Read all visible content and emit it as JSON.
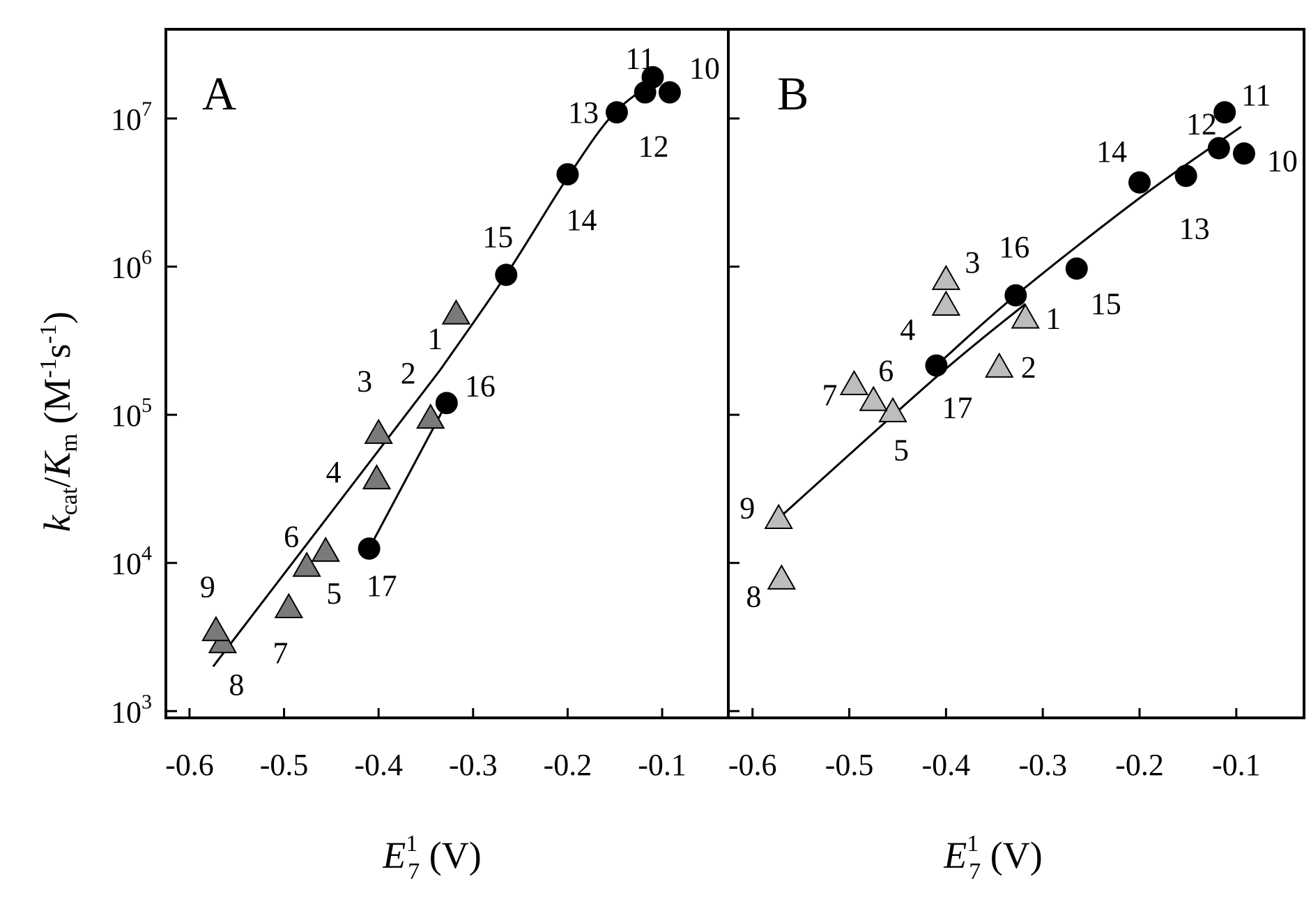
{
  "chart_data": {
    "type": "scatter",
    "y_scale": "log",
    "ylim": [
      900,
      40000000
    ],
    "y_tick_values": [
      1000,
      10000,
      100000,
      1000000,
      10000000
    ],
    "y_tick_labels": [
      {
        "base": "10",
        "exp": "3"
      },
      {
        "base": "10",
        "exp": "4"
      },
      {
        "base": "10",
        "exp": "5"
      },
      {
        "base": "10",
        "exp": "6"
      },
      {
        "base": "10",
        "exp": "7"
      }
    ],
    "x_ticks": [
      -0.6,
      -0.5,
      -0.4,
      -0.3,
      -0.2,
      -0.1
    ],
    "x_tick_labels": [
      "-0.6",
      "-0.5",
      "-0.4",
      "-0.3",
      "-0.2",
      "-0.1"
    ],
    "y_title": {
      "k": "k",
      "cat": "cat",
      "slash": "/",
      "K": "K",
      "m": "m",
      "unit_open": " (M",
      "exp1": "-1",
      "s": "s",
      "exp2": "-1",
      "unit_close": ")"
    },
    "x_title": {
      "E": "E",
      "sup": "1",
      "sub": "7",
      "unit": " (V)"
    },
    "legend": "none",
    "grid": false,
    "panels": [
      {
        "letter": "A",
        "xlim": [
          -0.625,
          -0.03
        ],
        "triangle_color": "#7a7a7a",
        "circle_color": "#000000",
        "points": [
          {
            "label": "1",
            "marker": "triangle",
            "x": -0.318,
            "y": 480000
          },
          {
            "label": "2",
            "marker": "triangle",
            "x": -0.345,
            "y": 95000
          },
          {
            "label": "3",
            "marker": "triangle",
            "x": -0.4,
            "y": 75000
          },
          {
            "label": "4",
            "marker": "triangle",
            "x": -0.402,
            "y": 37000
          },
          {
            "label": "5",
            "marker": "triangle",
            "x": -0.456,
            "y": 12000
          },
          {
            "label": "6",
            "marker": "triangle",
            "x": -0.476,
            "y": 9500
          },
          {
            "label": "7",
            "marker": "triangle",
            "x": -0.495,
            "y": 5000
          },
          {
            "label": "8",
            "marker": "triangle",
            "x": -0.565,
            "y": 2900
          },
          {
            "label": "9",
            "marker": "triangle",
            "x": -0.572,
            "y": 3500
          },
          {
            "label": "10",
            "marker": "circle",
            "x": -0.092,
            "y": 15000000
          },
          {
            "label": "11",
            "marker": "circle",
            "x": -0.11,
            "y": 19000000
          },
          {
            "label": "12",
            "marker": "circle",
            "x": -0.118,
            "y": 15000000
          },
          {
            "label": "13",
            "marker": "circle",
            "x": -0.148,
            "y": 11000000
          },
          {
            "label": "14",
            "marker": "circle",
            "x": -0.2,
            "y": 4200000
          },
          {
            "label": "15",
            "marker": "circle",
            "x": -0.265,
            "y": 880000
          },
          {
            "label": "16",
            "marker": "circle",
            "x": -0.328,
            "y": 120000
          },
          {
            "label": "17",
            "marker": "circle",
            "x": -0.41,
            "y": 12500
          }
        ],
        "fit_lines": [
          {
            "x": [
              -0.575,
              -0.335
            ],
            "y": [
              2000,
              200000
            ]
          },
          {
            "x": [
              -0.41,
              -0.328
            ],
            "y": [
              12500,
              120000
            ]
          },
          {
            "x": [
              -0.335,
              -0.265,
              -0.2,
              -0.15,
              -0.1
            ],
            "y": [
              200000,
              880000,
              4000000,
              11000000,
              19000000
            ]
          }
        ]
      },
      {
        "letter": "B",
        "xlim": [
          -0.625,
          -0.03
        ],
        "triangle_color": "#bdbdbd",
        "circle_color": "#000000",
        "points": [
          {
            "label": "1",
            "marker": "triangle",
            "x": -0.318,
            "y": 450000
          },
          {
            "label": "2",
            "marker": "triangle",
            "x": -0.345,
            "y": 210000
          },
          {
            "label": "3",
            "marker": "triangle",
            "x": -0.4,
            "y": 820000
          },
          {
            "label": "4",
            "marker": "triangle",
            "x": -0.4,
            "y": 550000
          },
          {
            "label": "5",
            "marker": "triangle",
            "x": -0.455,
            "y": 105000
          },
          {
            "label": "6",
            "marker": "triangle",
            "x": -0.475,
            "y": 125000
          },
          {
            "label": "7",
            "marker": "triangle",
            "x": -0.495,
            "y": 160000
          },
          {
            "label": "8",
            "marker": "triangle",
            "x": -0.57,
            "y": 7800
          },
          {
            "label": "9",
            "marker": "triangle",
            "x": -0.573,
            "y": 20000
          },
          {
            "label": "10",
            "marker": "circle",
            "x": -0.092,
            "y": 5800000
          },
          {
            "label": "11",
            "marker": "circle",
            "x": -0.112,
            "y": 11000000
          },
          {
            "label": "12",
            "marker": "circle",
            "x": -0.118,
            "y": 6300000
          },
          {
            "label": "13",
            "marker": "circle",
            "x": -0.152,
            "y": 4100000
          },
          {
            "label": "14",
            "marker": "circle",
            "x": -0.2,
            "y": 3700000
          },
          {
            "label": "15",
            "marker": "circle",
            "x": -0.265,
            "y": 970000
          },
          {
            "label": "16",
            "marker": "circle",
            "x": -0.328,
            "y": 640000
          },
          {
            "label": "17",
            "marker": "circle",
            "x": -0.41,
            "y": 215000
          }
        ],
        "fit_lines": [
          {
            "x": [
              -0.573,
              -0.41,
              -0.318
            ],
            "y": [
              20000,
              180000,
              560000
            ]
          },
          {
            "x": [
              -0.41,
              -0.328,
              -0.2,
              -0.095
            ],
            "y": [
              215000,
              640000,
              2900000,
              8800000
            ]
          }
        ]
      }
    ]
  }
}
